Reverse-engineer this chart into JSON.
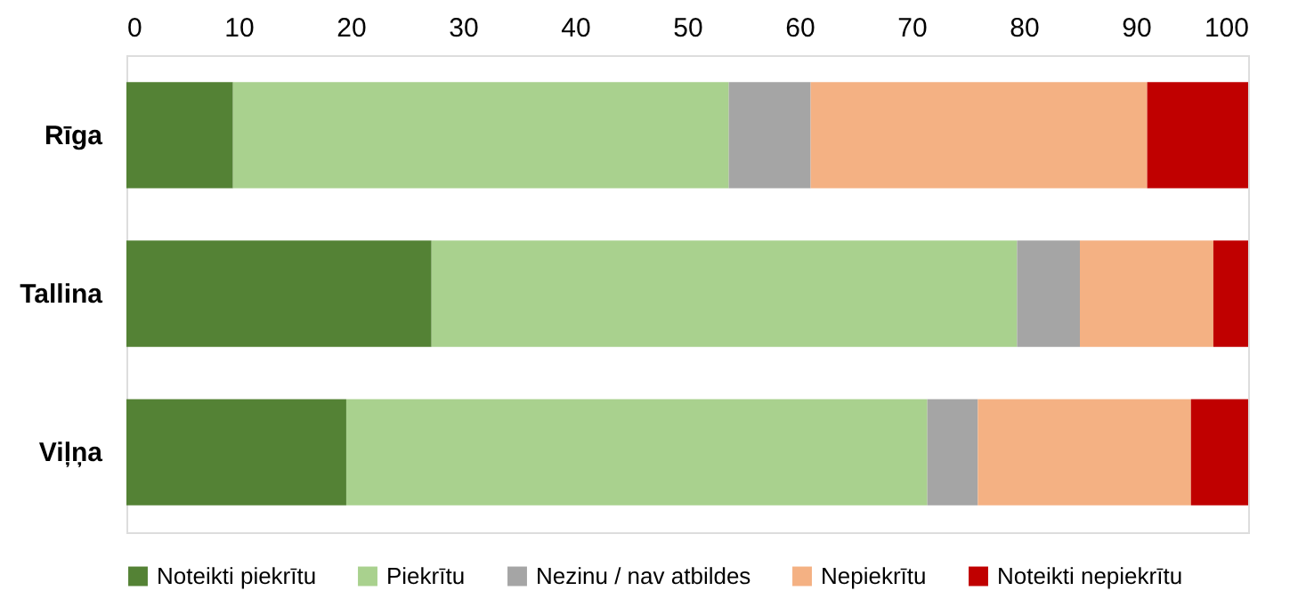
{
  "chart_data": {
    "type": "bar",
    "orientation": "horizontal",
    "stacked": true,
    "categories": [
      "Rīga",
      "Tallina",
      "Viļņa"
    ],
    "series": [
      {
        "name": "Noteikti piekrītu",
        "color": "#548235",
        "values": [
          9.5,
          27.2,
          19.6
        ]
      },
      {
        "name": "Piekrītu",
        "color": "#a9d18e",
        "values": [
          44.2,
          52.2,
          51.8
        ]
      },
      {
        "name": "Nezinu / nav atbildes",
        "color": "#a5a5a5",
        "values": [
          7.3,
          5.6,
          4.5
        ]
      },
      {
        "name": "Nepiekrītu",
        "color": "#f4b183",
        "values": [
          30,
          11.9,
          19
        ]
      },
      {
        "name": "Noteikti nepiekrītu",
        "color": "#c00000",
        "values": [
          9,
          3.1,
          5.1
        ]
      }
    ],
    "xlim": [
      0,
      100
    ],
    "xticks": [
      0,
      10,
      20,
      30,
      40,
      50,
      60,
      70,
      80,
      90,
      100
    ],
    "grid": false,
    "legend": "bottom"
  }
}
